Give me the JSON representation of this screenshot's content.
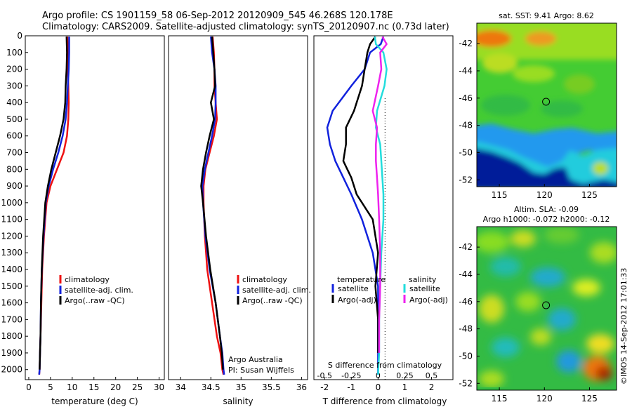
{
  "header": {
    "line1": "Argo profile: CS 1901159_58 06-Sep-2012 20120909_545 46.268S 120.178E",
    "line2": "Climatology: CARS2009. Satellite-adjusted climatology: synTS_20120907.nc (0.73d later)"
  },
  "colors": {
    "climatology": "#ee1111",
    "satellite": "#1122dd",
    "argo": "#000000",
    "salinity_satellite": "#22dddd",
    "salinity_argo": "#ee22ee"
  },
  "chart_data": [
    {
      "type": "line",
      "panel": "temperature",
      "xlabel": "temperature (deg C)",
      "ylabel": "",
      "xlim": [
        -0.8,
        31.2
      ],
      "ylim": [
        2060,
        0
      ],
      "xticks": [
        0,
        5,
        10,
        15,
        20,
        25,
        30
      ],
      "yticks": [
        0,
        100,
        200,
        300,
        400,
        500,
        600,
        700,
        800,
        900,
        1000,
        1100,
        1200,
        1300,
        1400,
        1500,
        1600,
        1700,
        1800,
        1900,
        2000
      ],
      "legend": [
        "climatology",
        "satellite-adj. clim.",
        "Argo(..raw -QC)"
      ],
      "legend_position": "bottom-center",
      "series": [
        {
          "name": "climatology",
          "x": [
            8.9,
            9.0,
            9.0,
            9.1,
            9.2,
            9.1,
            8.8,
            8.0,
            6.5,
            5.0,
            4.1,
            3.5,
            3.1,
            2.9,
            2.7,
            2.6,
            2.5,
            2.4
          ],
          "y": [
            5,
            100,
            200,
            300,
            400,
            500,
            600,
            700,
            800,
            900,
            1000,
            1200,
            1400,
            1600,
            1800,
            1900,
            2000,
            2030
          ]
        },
        {
          "name": "satellite-adj. clim.",
          "x": [
            9.3,
            9.3,
            9.2,
            9.0,
            8.8,
            8.5,
            7.8,
            6.8,
            5.6,
            4.6,
            3.9,
            3.4,
            3.0,
            2.8,
            2.7,
            2.6,
            2.5,
            2.4
          ],
          "y": [
            5,
            100,
            200,
            300,
            400,
            500,
            600,
            700,
            800,
            900,
            1000,
            1200,
            1400,
            1600,
            1800,
            1900,
            2000,
            2030
          ]
        },
        {
          "name": "Argo(..raw -QC)",
          "x": [
            8.7,
            8.8,
            8.7,
            8.5,
            8.4,
            8.0,
            7.2,
            6.2,
            5.2,
            4.4,
            3.8,
            3.3,
            3.0,
            2.8,
            2.7,
            2.6,
            2.5
          ],
          "y": [
            5,
            100,
            200,
            300,
            400,
            500,
            600,
            700,
            800,
            900,
            1000,
            1200,
            1400,
            1600,
            1800,
            1900,
            2000
          ]
        }
      ]
    },
    {
      "type": "line",
      "panel": "salinity",
      "xlabel": "salinity",
      "xlim": [
        33.8,
        36.1
      ],
      "ylim": [
        2060,
        0
      ],
      "xticks": [
        34,
        34.5,
        35,
        35.5,
        36
      ],
      "xtick_labels": [
        "34",
        "34.5",
        "35",
        "35.5",
        "36"
      ],
      "legend": [
        "climatology",
        "satellite-adj. clim.",
        "Argo(..raw -QC)"
      ],
      "legend_position": "bottom-center",
      "annotation": [
        "Argo Australia",
        "PI: Susan Wijffels"
      ],
      "series": [
        {
          "name": "climatology",
          "x": [
            34.53,
            34.55,
            34.56,
            34.56,
            34.58,
            34.6,
            34.55,
            34.48,
            34.41,
            34.38,
            34.38,
            34.4,
            34.44,
            34.52,
            34.6,
            34.66,
            34.69,
            34.71
          ],
          "y": [
            5,
            100,
            200,
            300,
            400,
            500,
            600,
            700,
            800,
            900,
            1000,
            1200,
            1400,
            1600,
            1800,
            1900,
            2000,
            2030
          ]
        },
        {
          "name": "satellite-adj. clim.",
          "x": [
            34.5,
            34.52,
            34.56,
            34.58,
            34.58,
            34.57,
            34.52,
            34.46,
            34.4,
            34.36,
            34.37,
            34.41,
            34.48,
            34.58,
            34.65,
            34.69,
            34.71,
            34.72
          ],
          "y": [
            5,
            100,
            200,
            300,
            400,
            500,
            600,
            700,
            800,
            900,
            1000,
            1200,
            1400,
            1600,
            1800,
            1900,
            2000,
            2030
          ]
        },
        {
          "name": "Argo(..raw -QC)",
          "x": [
            34.52,
            34.54,
            34.56,
            34.57,
            34.5,
            34.55,
            34.48,
            34.42,
            34.37,
            34.34,
            34.37,
            34.42,
            34.49,
            34.58,
            34.65,
            34.68,
            34.7
          ],
          "y": [
            5,
            100,
            200,
            300,
            400,
            500,
            600,
            700,
            800,
            900,
            1000,
            1200,
            1400,
            1600,
            1800,
            1900,
            2000
          ]
        }
      ]
    },
    {
      "type": "line",
      "panel": "difference",
      "xlabel": "T difference from climatology",
      "xlabel_top": "S difference from climatology",
      "xlim": [
        -2.4,
        2.8
      ],
      "ylim": [
        2060,
        0
      ],
      "xticks": [
        -2,
        -1,
        0,
        1,
        2
      ],
      "s_xticks": [
        -0.5,
        -0.25,
        0,
        0.25,
        0.5
      ],
      "s_xtick_labels": [
        "-0.5",
        "-0.25",
        "0",
        "0.25",
        "0.5"
      ],
      "legend_temperature": {
        "title": "temperature",
        "items": [
          "satellite",
          "Argo(-adj)"
        ]
      },
      "legend_salinity": {
        "title": "salinity",
        "items": [
          "satellite",
          "Argo(-adj)"
        ]
      },
      "series": [
        {
          "name": "temperature satellite",
          "x": [
            0.2,
            0.1,
            -0.3,
            -0.5,
            -1.0,
            -1.7,
            -1.9,
            -1.8,
            -1.6,
            -1.3,
            -1.0,
            -0.6,
            -0.2,
            0.0,
            0.0,
            0.0,
            0.0
          ],
          "y": [
            5,
            50,
            100,
            200,
            300,
            450,
            550,
            650,
            750,
            850,
            950,
            1100,
            1300,
            1500,
            1700,
            1900,
            2030
          ]
        },
        {
          "name": "temperature Argo(-adj)",
          "x": [
            -0.1,
            -0.3,
            -0.4,
            -0.5,
            -0.6,
            -0.9,
            -1.2,
            -1.2,
            -1.3,
            -1.0,
            -0.8,
            -0.2,
            0.0,
            -0.1,
            0.0,
            0.0
          ],
          "y": [
            5,
            50,
            100,
            200,
            300,
            450,
            550,
            650,
            750,
            850,
            950,
            1100,
            1300,
            1500,
            1700,
            1900
          ]
        },
        {
          "name": "salinity satellite",
          "x": [
            -0.03,
            -0.02,
            0.05,
            0.08,
            0.06,
            -0.01,
            -0.02,
            0.02,
            0.03,
            0.04,
            0.05,
            0.05,
            0.03,
            0.02,
            0.01,
            0.01,
            0.0
          ],
          "y": [
            5,
            50,
            100,
            200,
            300,
            450,
            550,
            650,
            750,
            850,
            950,
            1100,
            1300,
            1500,
            1700,
            1900,
            2030
          ]
        },
        {
          "name": "salinity Argo(-adj)",
          "x": [
            0.04,
            0.08,
            0.02,
            0.03,
            0.0,
            -0.05,
            -0.01,
            -0.02,
            -0.02,
            -0.01,
            0.0,
            0.01,
            0.02,
            0.02,
            0.01,
            0.01
          ],
          "y": [
            5,
            50,
            100,
            200,
            300,
            450,
            550,
            650,
            750,
            850,
            950,
            1100,
            1300,
            1500,
            1700,
            1900
          ]
        }
      ]
    },
    {
      "type": "heatmap",
      "panel": "map-sst",
      "title": "sat. SST: 9.41 Argo: 8.62",
      "xlim": [
        112.5,
        128
      ],
      "ylim": [
        -52.5,
        -40.5
      ],
      "xticks": [
        115,
        120,
        125
      ],
      "yticks": [
        -42,
        -44,
        -46,
        -48,
        -50,
        -52
      ],
      "marker": {
        "lon": 120.178,
        "lat": -46.268
      }
    },
    {
      "type": "heatmap",
      "panel": "map-sla",
      "title_lines": [
        "Altim. SLA: -0.09",
        "Argo h1000: -0.072 h2000: -0.12"
      ],
      "xlim": [
        112.5,
        128
      ],
      "ylim": [
        -52.5,
        -40.5
      ],
      "xticks": [
        115,
        120,
        125
      ],
      "yticks": [
        -42,
        -44,
        -46,
        -48,
        -50,
        -52
      ],
      "marker": {
        "lon": 120.178,
        "lat": -46.268
      }
    }
  ],
  "footer": {
    "stamp": "©IMOS 14-Sep-2012 17:01:33"
  }
}
